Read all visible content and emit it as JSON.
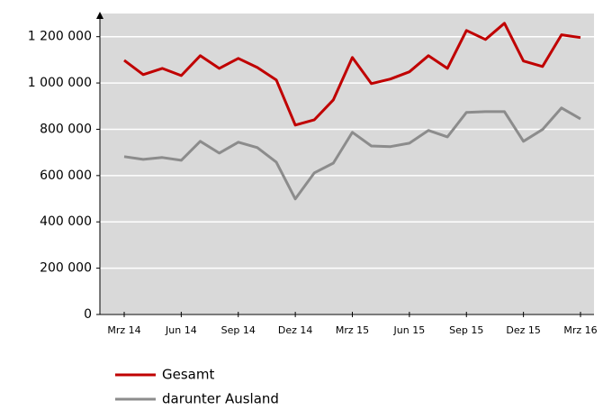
{
  "chart_data": {
    "type": "line",
    "categories": [
      "Mrz 14",
      null,
      null,
      "Jun 14",
      null,
      null,
      "Sep 14",
      null,
      null,
      "Dez 14",
      null,
      null,
      "Mrz 15",
      null,
      null,
      "Jun 15",
      null,
      null,
      "Sep 15",
      null,
      null,
      "Dez 15",
      null,
      null,
      "Mrz 16"
    ],
    "series": [
      {
        "name": "Gesamt",
        "color": "#c00000",
        "values": [
          1098000,
          1036000,
          1063000,
          1032000,
          1118000,
          1063000,
          1106000,
          1067000,
          1013000,
          818000,
          841000,
          927000,
          1110000,
          997000,
          1017000,
          1048000,
          1118000,
          1063000,
          1227000,
          1188000,
          1258000,
          1095000,
          1071000,
          1208000,
          1196000
        ]
      },
      {
        "name": "darunter Ausland",
        "color": "#8c8c8c",
        "values": [
          682000,
          670000,
          678000,
          666000,
          748000,
          697000,
          744000,
          721000,
          658000,
          499000,
          612000,
          654000,
          787000,
          728000,
          725000,
          740000,
          795000,
          767000,
          873000,
          876000,
          876000,
          748000,
          799000,
          892000,
          845000
        ]
      }
    ],
    "ylim": [
      0,
      1300000
    ],
    "yticks": [
      0,
      {
        "value": 200000,
        "label": "200 000"
      },
      {
        "value": 400000,
        "label": "400 000"
      },
      {
        "value": 600000,
        "label": "600 000"
      },
      {
        "value": 800000,
        "label": "800 000"
      },
      {
        "value": 1000000,
        "label": "1 000 000"
      },
      {
        "value": 1200000,
        "label": "1 200 000"
      }
    ],
    "grid": true
  }
}
